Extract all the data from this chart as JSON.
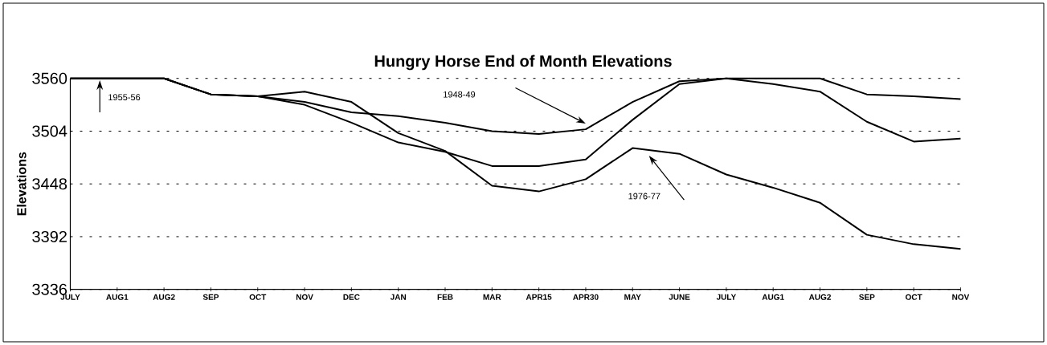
{
  "chart_data": {
    "type": "line",
    "title": "Hungry Horse End of Month Elevations",
    "ylabel": "Elevations",
    "categories": [
      "JULY",
      "AUG1",
      "AUG2",
      "SEP",
      "OCT",
      "NOV",
      "DEC",
      "JAN",
      "FEB",
      "MAR",
      "APR15",
      "APR30",
      "MAY",
      "JUNE",
      "JULY",
      "AUG1",
      "AUG2",
      "SEP",
      "OCT",
      "NOV"
    ],
    "series": [
      {
        "color": "#000000",
        "values": [
          3560,
          3560,
          3560,
          3543,
          3541,
          3535,
          3524,
          3520,
          3513,
          3504,
          3501,
          3506,
          3535,
          3557,
          3560,
          3560,
          3560,
          3543,
          3541,
          3538
        ]
      },
      {
        "color": "#000000",
        "values": [
          3560,
          3560,
          3560,
          3543,
          3541,
          3546,
          3535,
          3502,
          3483,
          3446,
          3440,
          3453,
          3486,
          3480,
          3458,
          3444,
          3428,
          3394,
          3384,
          3379
        ]
      },
      {
        "color": "#000000",
        "values": [
          3560,
          3560,
          3560,
          3543,
          3541,
          3532,
          3513,
          3492,
          3482,
          3467,
          3467,
          3474,
          3516,
          3554,
          3560,
          3554,
          3546,
          3514,
          3493,
          3496
        ]
      }
    ],
    "ylim": [
      3336,
      3560
    ],
    "yticks": [
      3336,
      3392,
      3448,
      3504,
      3560
    ],
    "annotations": [
      "1948-49",
      "1976-77",
      "1955-56"
    ],
    "grid": "y",
    "legend": false,
    "marker": "none",
    "line_style": "solid"
  }
}
